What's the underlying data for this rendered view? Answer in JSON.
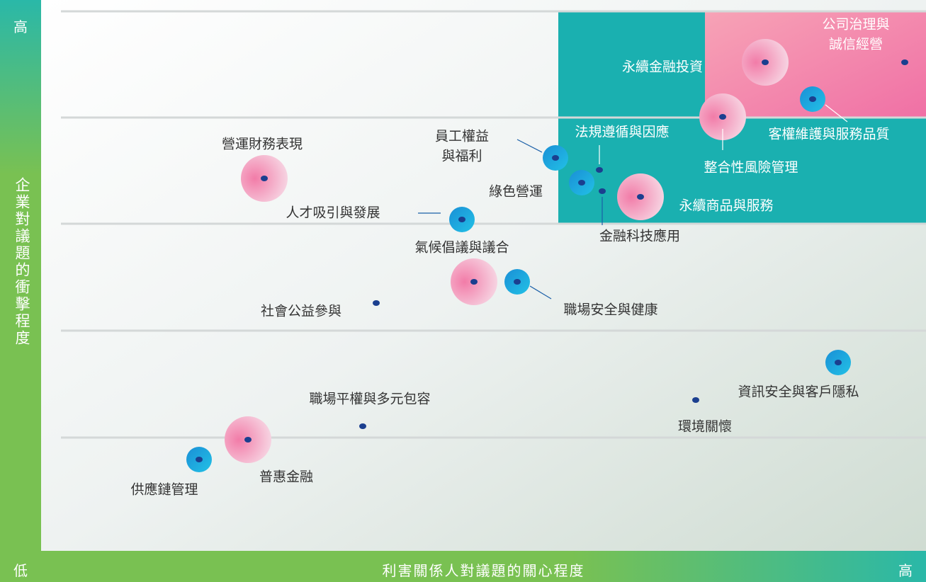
{
  "axes": {
    "y_high": "高",
    "y_label": "企業對議題的衝擊程度",
    "y_low": "低",
    "x_label": "利害關係人對議題的關心程度",
    "x_high": "高"
  },
  "topics": [
    {
      "label": "永續金融投資"
    },
    {
      "label": [
        "公司治理與",
        "誠信經營"
      ]
    },
    {
      "label": "客權維護與服務品質"
    },
    {
      "label": "整合性風險管理"
    },
    {
      "label": "營運財務表現"
    },
    {
      "label": [
        "員工權益",
        "與福利"
      ]
    },
    {
      "label": "法規遵循與因應"
    },
    {
      "label": "綠色營運"
    },
    {
      "label": "金融科技應用"
    },
    {
      "label": "永續商品與服務"
    },
    {
      "label": "人才吸引與發展"
    },
    {
      "label": "氣候倡議與議合"
    },
    {
      "label": "職場安全與健康"
    },
    {
      "label": "社會公益參與"
    },
    {
      "label": "資訊安全與客戶隱私"
    },
    {
      "label": "環境關懷"
    },
    {
      "label": "職場平權與多元包容"
    },
    {
      "label": "普惠金融"
    },
    {
      "label": "供應鏈管理"
    }
  ]
}
